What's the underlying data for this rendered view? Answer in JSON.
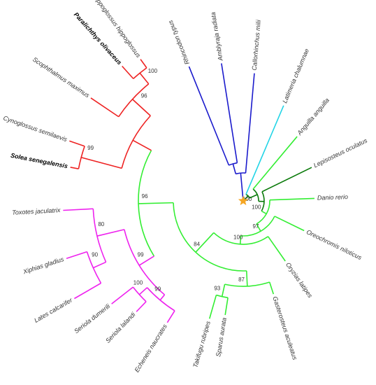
{
  "leaves": [
    "Rhincodon typus",
    "Amblyraja radiata",
    "Callorhinchus milii",
    "Latimeria chalumnae",
    "Anguilla anguilla",
    "Lepisosteus oculatus",
    "Danio rerio",
    "Oreochromis niloticus",
    "Oryzias latipes",
    "Gasterosteus aculeatus",
    "Sparus aurata",
    "Takifugu rubripes",
    "Echeneis naucrates",
    "Seriola lalandi",
    "Seriola dumerili",
    "Lates calcarifer",
    "Xiphias gladius",
    "Toxotes jaculatrix",
    "Solea senegalensis",
    "Cynoglossus semilaevis",
    "Scophthalmus maximus",
    "Paralichthys olivaceus",
    "Hippoglossus hippoglossus"
  ],
  "supports": [
    100,
    100,
    97,
    100,
    84,
    87,
    93,
    96,
    99,
    80,
    90,
    100,
    99,
    99,
    96,
    100
  ]
}
